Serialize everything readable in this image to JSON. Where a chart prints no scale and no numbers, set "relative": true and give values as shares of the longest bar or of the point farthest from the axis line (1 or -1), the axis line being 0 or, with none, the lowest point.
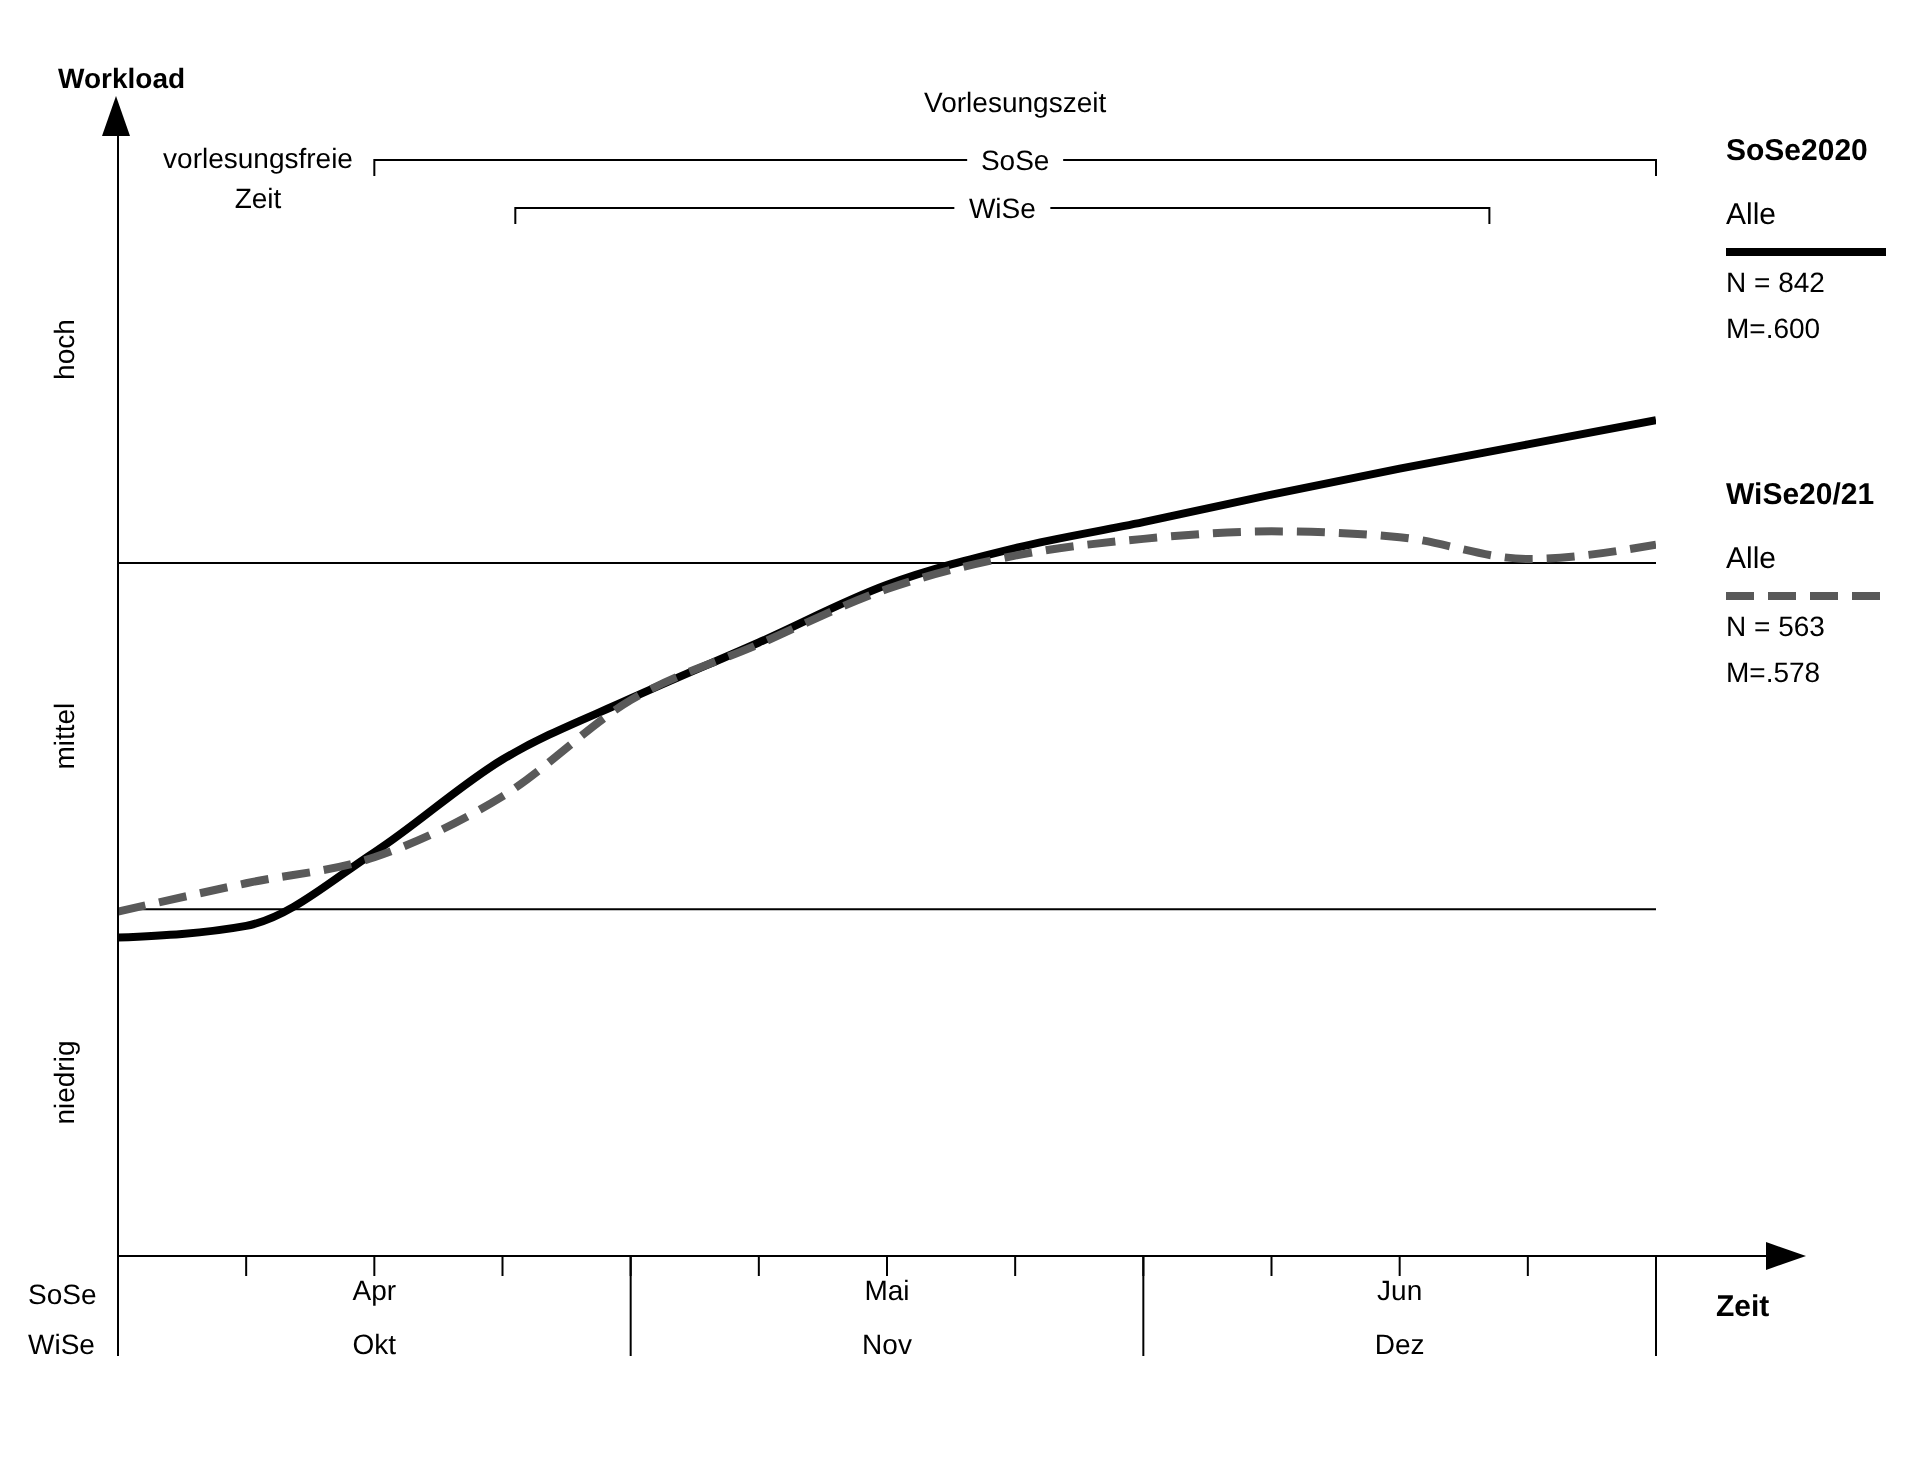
{
  "chart_data": {
    "type": "line",
    "relative": true,
    "xlabel": "Zeit",
    "categories": [
      null,
      null,
      "Apr",
      null,
      null,
      null,
      "Mai",
      null,
      null,
      null,
      "Jun",
      null,
      null
    ],
    "series": [
      {
        "name": "Alle",
        "color": "#000000",
        "line_style": "solid",
        "values": [
          0.381,
          0.395,
          0.483,
          0.594,
          0.667,
          0.734,
          0.803,
          0.847,
          0.878,
          0.911,
          0.942,
          0.971,
          1.0
        ]
      },
      {
        "name": "Alle",
        "color": "#595959",
        "line_style": "dashed",
        "values": [
          0.412,
          0.446,
          0.477,
          0.55,
          0.665,
          0.732,
          0.798,
          0.838,
          0.858,
          0.867,
          0.86,
          0.834,
          0.851
        ]
      }
    ],
    "ref_lines": [
      {
        "axis": "y",
        "value": 0.829,
        "color": "#000000"
      },
      {
        "axis": "y",
        "value": 0.415,
        "color": "#000000"
      }
    ],
    "annotations": [
      "Vorlesungszeit",
      "vorlesungsfreie Zeit",
      "hoch",
      "mittel",
      "niedrig",
      "SoSe",
      "WiSe",
      "Okt",
      "Nov",
      "Dez",
      "SoSe2020",
      "N = 842",
      "M=.600",
      "WiSe20/21",
      "N = 563",
      "M=.578",
      "SoSe",
      "WiSe",
      "Workload"
    ],
    "legend": "right",
    "marker": "none"
  }
}
